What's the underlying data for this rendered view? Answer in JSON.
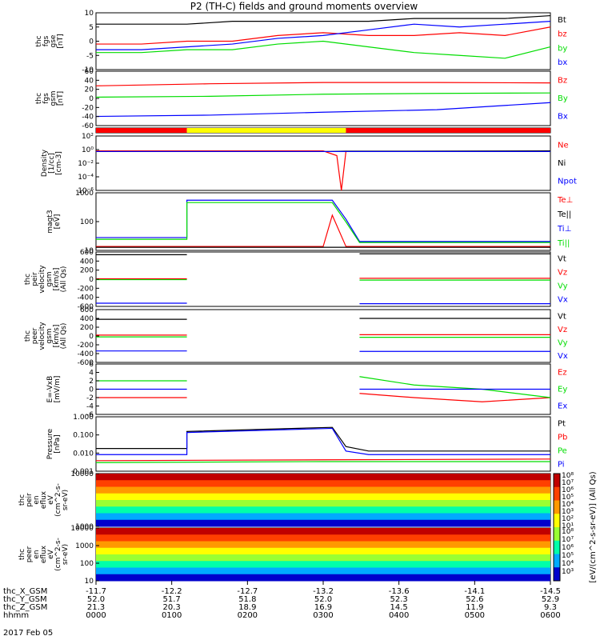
{
  "title": "P2 (TH-C) fields and ground moments overview",
  "date": "2017 Feb 05",
  "colors": {
    "black": "#000000",
    "red": "#ff0000",
    "green": "#00dd00",
    "blue": "#0000ff",
    "yellow": "#ffff00"
  },
  "chart_data": [
    {
      "type": "line",
      "panel": "fgs_gse",
      "ylabel": [
        "thc",
        "fgs",
        "gse",
        "[nT]"
      ],
      "ylim": [
        -10,
        10
      ],
      "ticks": [
        "10",
        "5",
        "0",
        "-5",
        "-10"
      ],
      "legend": [
        "Bt",
        "bz",
        "by",
        "bx"
      ],
      "series": [
        {
          "name": "Bt",
          "color": "black",
          "x": [
            0,
            0.1,
            0.2,
            0.3,
            0.4,
            0.5,
            0.6,
            0.7,
            0.8,
            0.9,
            1
          ],
          "y": [
            6,
            6,
            6,
            7,
            7,
            7,
            7,
            8,
            8,
            8,
            9
          ]
        },
        {
          "name": "bz",
          "color": "red",
          "x": [
            0,
            0.1,
            0.2,
            0.3,
            0.4,
            0.5,
            0.6,
            0.7,
            0.8,
            0.9,
            1
          ],
          "y": [
            -1,
            -1,
            0,
            0,
            2,
            3,
            2,
            2,
            3,
            2,
            5
          ]
        },
        {
          "name": "by",
          "color": "green",
          "x": [
            0,
            0.1,
            0.2,
            0.3,
            0.4,
            0.5,
            0.6,
            0.7,
            0.8,
            0.9,
            1
          ],
          "y": [
            -4,
            -4,
            -3,
            -3,
            -1,
            0,
            -2,
            -4,
            -5,
            -6,
            -2
          ]
        },
        {
          "name": "bx",
          "color": "blue",
          "x": [
            0,
            0.1,
            0.2,
            0.3,
            0.4,
            0.5,
            0.6,
            0.7,
            0.8,
            0.9,
            1
          ],
          "y": [
            -3,
            -3,
            -2,
            -1,
            1,
            2,
            4,
            6,
            5,
            6,
            7
          ]
        }
      ]
    },
    {
      "type": "line",
      "panel": "fgs_gsm",
      "ylabel": [
        "thc",
        "fgs",
        "gsm",
        "[nT]"
      ],
      "ylim": [
        -70,
        60
      ],
      "ticks": [
        "60",
        "40",
        "20",
        "0",
        "-20",
        "-40",
        "-60"
      ],
      "legend": [
        "Bz",
        "By",
        "Bx"
      ],
      "series": [
        {
          "name": "Bz",
          "color": "red",
          "x": [
            0,
            0.25,
            0.5,
            0.75,
            1
          ],
          "y": [
            25,
            30,
            33,
            33,
            32
          ]
        },
        {
          "name": "By",
          "color": "green",
          "x": [
            0,
            0.25,
            0.5,
            0.75,
            1
          ],
          "y": [
            -2,
            0,
            5,
            7,
            8
          ]
        },
        {
          "name": "Bx",
          "color": "blue",
          "x": [
            0,
            0.25,
            0.5,
            0.75,
            1
          ],
          "y": [
            -48,
            -45,
            -38,
            -32,
            -15
          ]
        }
      ]
    },
    {
      "type": "bar",
      "panel": "mode_bar",
      "segments": [
        {
          "from": 0,
          "to": 0.2,
          "color": "red"
        },
        {
          "from": 0.2,
          "to": 0.55,
          "color": "yellow"
        },
        {
          "from": 0.55,
          "to": 1,
          "color": "red"
        }
      ]
    },
    {
      "type": "line",
      "panel": "density",
      "ylabel": [
        "Density",
        "[1/cc]",
        "[cm-3]"
      ],
      "yscale": "log",
      "ylim": [
        1e-05,
        100
      ],
      "ticks": [
        "10²",
        "10⁰",
        "10⁻²",
        "10⁻⁴",
        "10⁻⁶"
      ],
      "legend": [
        "Ne",
        "Ni",
        "Npot"
      ],
      "series": [
        {
          "name": "Ne",
          "color": "red",
          "x": [
            0,
            0.5,
            0.53,
            0.54,
            0.55,
            1
          ],
          "y": [
            1.2,
            1.2,
            0.3,
            1e-05,
            1,
            1
          ]
        },
        {
          "name": "Ni",
          "color": "black",
          "x": [
            0,
            0.5,
            0.55,
            1
          ],
          "y": [
            1,
            1,
            1.1,
            1.2
          ]
        },
        {
          "name": "Npot",
          "color": "blue",
          "x": [
            0,
            0.5,
            0.55,
            1
          ],
          "y": [
            1,
            1,
            1,
            1
          ]
        }
      ]
    },
    {
      "type": "line",
      "panel": "temperature",
      "ylabel": [
        "magt3",
        "[eV]"
      ],
      "yscale": "log",
      "ylim": [
        8,
        3000
      ],
      "ticks": [
        "1000",
        "100",
        "10"
      ],
      "legend": [
        "Te⊥",
        "Te||",
        "Ti⊥",
        "Ti||"
      ],
      "series": [
        {
          "name": "Ti⊥",
          "color": "blue",
          "x": [
            0,
            0.2,
            0.2,
            0.52,
            0.55,
            0.58,
            1
          ],
          "y": [
            30,
            30,
            1400,
            1400,
            200,
            20,
            20
          ]
        },
        {
          "name": "Ti||",
          "color": "green",
          "x": [
            0,
            0.2,
            0.2,
            0.52,
            0.55,
            0.58,
            1
          ],
          "y": [
            25,
            25,
            1100,
            1100,
            150,
            18,
            18
          ]
        },
        {
          "name": "Te⊥",
          "color": "red",
          "x": [
            0,
            0.5,
            0.52,
            0.55,
            1
          ],
          "y": [
            12,
            12,
            300,
            12,
            12
          ]
        },
        {
          "name": "Te||",
          "color": "black",
          "x": [
            0,
            0.5,
            1
          ],
          "y": [
            11,
            11,
            11
          ]
        }
      ]
    },
    {
      "type": "line",
      "panel": "peir_velocity",
      "ylabel": [
        "thc",
        "peir",
        "velocity",
        "gsm",
        "[km/s]",
        "(All Qs)"
      ],
      "ylim": [
        -600,
        600
      ],
      "ticks": [
        "600",
        "400",
        "200",
        "0",
        "-200",
        "-400",
        "-600"
      ],
      "legend": [
        "Vt",
        "Vz",
        "Vy",
        "Vx"
      ],
      "gap": [
        0.2,
        0.58
      ],
      "series": [
        {
          "name": "Vt",
          "color": "black",
          "x": [
            0,
            1
          ],
          "y": [
            540,
            560
          ]
        },
        {
          "name": "Vz",
          "color": "red",
          "x": [
            0,
            1
          ],
          "y": [
            10,
            20
          ]
        },
        {
          "name": "Vy",
          "color": "green",
          "x": [
            0,
            1
          ],
          "y": [
            -10,
            -20
          ]
        },
        {
          "name": "Vx",
          "color": "blue",
          "x": [
            0,
            1
          ],
          "y": [
            -530,
            -540
          ]
        }
      ]
    },
    {
      "type": "line",
      "panel": "peer_velocity",
      "ylabel": [
        "thc",
        "peer",
        "velocity",
        "gsm",
        "[km/s]",
        "(All Qs)"
      ],
      "ylim": [
        -600,
        600
      ],
      "ticks": [
        "600",
        "400",
        "200",
        "0",
        "-200",
        "-400",
        "-600"
      ],
      "legend": [
        "Vt",
        "Vz",
        "Vy",
        "Vx"
      ],
      "gap": [
        0.2,
        0.58
      ],
      "series": [
        {
          "name": "Vt",
          "color": "black",
          "x": [
            0,
            1
          ],
          "y": [
            380,
            400
          ]
        },
        {
          "name": "Vz",
          "color": "red",
          "x": [
            0,
            1
          ],
          "y": [
            20,
            30
          ]
        },
        {
          "name": "Vy",
          "color": "green",
          "x": [
            0,
            1
          ],
          "y": [
            -20,
            -30
          ]
        },
        {
          "name": "Vx",
          "color": "blue",
          "x": [
            0,
            1
          ],
          "y": [
            -340,
            -350
          ]
        }
      ]
    },
    {
      "type": "line",
      "panel": "efield",
      "ylabel": [
        "E=-VxB",
        "[mV/m]"
      ],
      "ylim": [
        -6,
        6
      ],
      "ticks": [
        "6",
        "4",
        "2",
        "0",
        "-2",
        "-4",
        "-6"
      ],
      "legend": [
        "Ez",
        "Ey",
        "Ex"
      ],
      "gap": [
        0.2,
        0.58
      ],
      "series": [
        {
          "name": "Ez",
          "color": "red",
          "x": [
            0,
            0.2,
            0.58,
            0.7,
            0.85,
            1
          ],
          "y": [
            -2,
            -2,
            -1,
            -2,
            -3,
            -2
          ]
        },
        {
          "name": "Ey",
          "color": "green",
          "x": [
            0,
            0.2,
            0.58,
            0.7,
            0.85,
            1
          ],
          "y": [
            2,
            2,
            3,
            1,
            0,
            -2
          ]
        },
        {
          "name": "Ex",
          "color": "blue",
          "x": [
            0,
            0.2,
            0.58,
            1
          ],
          "y": [
            0,
            0,
            0,
            0
          ]
        }
      ]
    },
    {
      "type": "line",
      "panel": "pressure",
      "ylabel": [
        "Pressure",
        "[nPa]"
      ],
      "yscale": "log",
      "ylim": [
        0.003,
        1.5
      ],
      "ticks": [
        "1.000",
        "0.100",
        "0.010",
        "0.001"
      ],
      "legend": [
        "Pt",
        "Pb",
        "Pe",
        "Pi"
      ],
      "series": [
        {
          "name": "Pt",
          "color": "black",
          "x": [
            0,
            0.2,
            0.2,
            0.52,
            0.55,
            0.6,
            1
          ],
          "y": [
            0.04,
            0.04,
            0.28,
            0.45,
            0.05,
            0.03,
            0.03
          ]
        },
        {
          "name": "Pi",
          "color": "blue",
          "x": [
            0,
            0.2,
            0.2,
            0.52,
            0.55,
            0.6,
            1
          ],
          "y": [
            0.02,
            0.02,
            0.25,
            0.4,
            0.03,
            0.02,
            0.02
          ]
        },
        {
          "name": "Pb",
          "color": "red",
          "x": [
            0,
            0.5,
            1
          ],
          "y": [
            0.01,
            0.011,
            0.012
          ]
        },
        {
          "name": "Pe",
          "color": "green",
          "x": [
            0,
            0.5,
            1
          ],
          "y": [
            0.008,
            0.009,
            0.009
          ]
        }
      ]
    },
    {
      "type": "heatmap",
      "panel": "peir_spectrogram",
      "ylabel": [
        "thc",
        "peir",
        "en",
        "eflux",
        "eV",
        "(cm^2-s-",
        "sr-eV)"
      ],
      "ticks": [
        "10000",
        "1000"
      ]
    },
    {
      "type": "heatmap",
      "panel": "peer_spectrogram",
      "ylabel": [
        "thc",
        "peer",
        "en",
        "eflux",
        "eV",
        "(cm^2-s-",
        "sr-eV)"
      ],
      "ticks": [
        "10000",
        "1000",
        "100",
        "10"
      ]
    }
  ],
  "colorbar": {
    "unit_label": "[eV/(cm^2-s-sr-eV)] (All Qs)",
    "ticks_top": [
      "10⁸",
      "10⁷",
      "10⁶",
      "10⁵",
      "10⁴",
      "10³",
      "10²",
      "10¹"
    ],
    "ticks_bottom": [
      "10⁸",
      "10⁷",
      "10⁶",
      "10⁵",
      "10⁴",
      "10³"
    ]
  },
  "footer": {
    "labels": [
      "thc_X_GSM",
      "thc_Y_GSM",
      "thc_Z_GSM",
      "hhmm"
    ],
    "columns": [
      [
        "-11.7",
        "52.0",
        "21.3",
        "0000"
      ],
      [
        "-12.2",
        "51.7",
        "20.3",
        "0100"
      ],
      [
        "-12.7",
        "51.8",
        "18.9",
        "0200"
      ],
      [
        "-13.2",
        "52.0",
        "16.9",
        "0300"
      ],
      [
        "-13.6",
        "52.3",
        "14.5",
        "0400"
      ],
      [
        "-14.1",
        "52.6",
        "11.9",
        "0500"
      ],
      [
        "-14.5",
        "52.9",
        "9.3",
        "0600"
      ]
    ]
  }
}
